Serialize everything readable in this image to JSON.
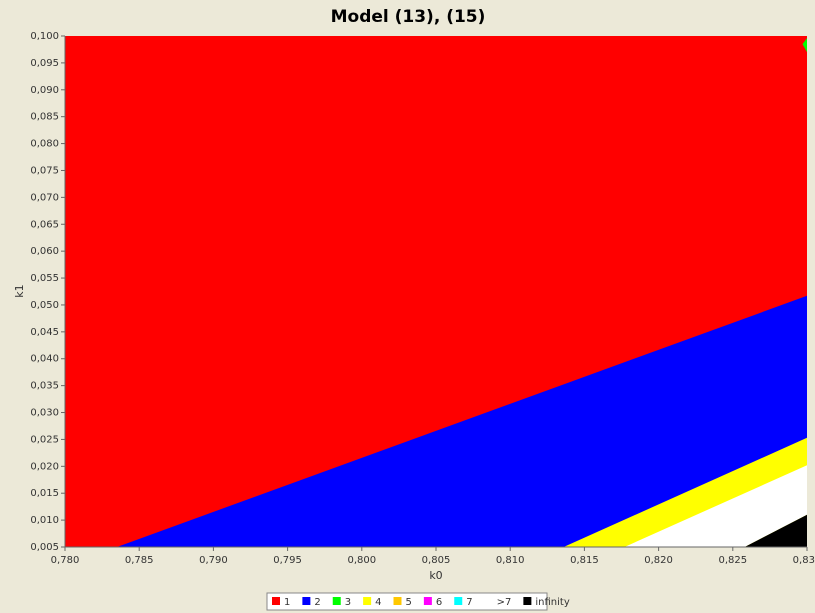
{
  "chart_data": {
    "type": "region",
    "title": "Model (13), (15)",
    "xlabel": "k0",
    "ylabel": "k1",
    "xlim": [
      0.78,
      0.83
    ],
    "ylim": [
      0.005,
      0.1
    ],
    "xticks": [
      {
        "value": 0.78,
        "label": "0,780"
      },
      {
        "value": 0.785,
        "label": "0,785"
      },
      {
        "value": 0.79,
        "label": "0,790"
      },
      {
        "value": 0.795,
        "label": "0,795"
      },
      {
        "value": 0.8,
        "label": "0,800"
      },
      {
        "value": 0.805,
        "label": "0,805"
      },
      {
        "value": 0.81,
        "label": "0,810"
      },
      {
        "value": 0.815,
        "label": "0,815"
      },
      {
        "value": 0.82,
        "label": "0,820"
      },
      {
        "value": 0.825,
        "label": "0,825"
      },
      {
        "value": 0.83,
        "label": "0,830"
      }
    ],
    "yticks": [
      {
        "value": 0.005,
        "label": "0,005"
      },
      {
        "value": 0.01,
        "label": "0,010"
      },
      {
        "value": 0.015,
        "label": "0,015"
      },
      {
        "value": 0.02,
        "label": "0,020"
      },
      {
        "value": 0.025,
        "label": "0,025"
      },
      {
        "value": 0.03,
        "label": "0,030"
      },
      {
        "value": 0.035,
        "label": "0,035"
      },
      {
        "value": 0.04,
        "label": "0,040"
      },
      {
        "value": 0.045,
        "label": "0,045"
      },
      {
        "value": 0.05,
        "label": "0,050"
      },
      {
        "value": 0.055,
        "label": "0,055"
      },
      {
        "value": 0.06,
        "label": "0,060"
      },
      {
        "value": 0.065,
        "label": "0,065"
      },
      {
        "value": 0.07,
        "label": "0,070"
      },
      {
        "value": 0.075,
        "label": "0,075"
      },
      {
        "value": 0.08,
        "label": "0,080"
      },
      {
        "value": 0.085,
        "label": "0,085"
      },
      {
        "value": 0.09,
        "label": "0,090"
      },
      {
        "value": 0.095,
        "label": "0,095"
      },
      {
        "value": 0.1,
        "label": "0,100"
      }
    ],
    "series": [
      {
        "name": "1",
        "color": "#ff0000",
        "polygon": [
          [
            0.78,
            0.005
          ],
          [
            0.78,
            0.1
          ],
          [
            0.83,
            0.1
          ],
          [
            0.83,
            0.005
          ]
        ]
      },
      {
        "name": "2",
        "color": "#0000ff",
        "polygon": [
          [
            0.7835,
            0.005
          ],
          [
            0.83,
            0.0517
          ],
          [
            0.83,
            0.005
          ]
        ]
      },
      {
        "name": "3",
        "color": "#00ff00",
        "polygon": [
          [
            0.83,
            0.0996
          ],
          [
            0.8297,
            0.0985
          ],
          [
            0.83,
            0.097
          ]
        ]
      },
      {
        "name": "4",
        "color": "#ffff00",
        "polygon": [
          [
            0.8136,
            0.005
          ],
          [
            0.83,
            0.0253
          ],
          [
            0.83,
            0.005
          ]
        ]
      },
      {
        "name": "5",
        "color": "#ffc800"
      },
      {
        "name": "6",
        "color": "#ff00ff",
        "polygon": [
          [
            0.8205,
            0.005
          ],
          [
            0.83,
            0.0169
          ],
          [
            0.83,
            0.0165
          ],
          [
            0.8211,
            0.005
          ]
        ]
      },
      {
        "name": "7",
        "color": "#00ffff"
      },
      {
        "name": ">7",
        "color": "#ffffff",
        "polygon": [
          [
            0.8177,
            0.005
          ],
          [
            0.83,
            0.0202
          ],
          [
            0.83,
            0.011
          ],
          [
            0.8258,
            0.005
          ]
        ]
      },
      {
        "name": "infinity",
        "color": "#000000",
        "polygon": [
          [
            0.8258,
            0.005
          ],
          [
            0.83,
            0.011
          ],
          [
            0.83,
            0.005
          ]
        ]
      }
    ]
  }
}
